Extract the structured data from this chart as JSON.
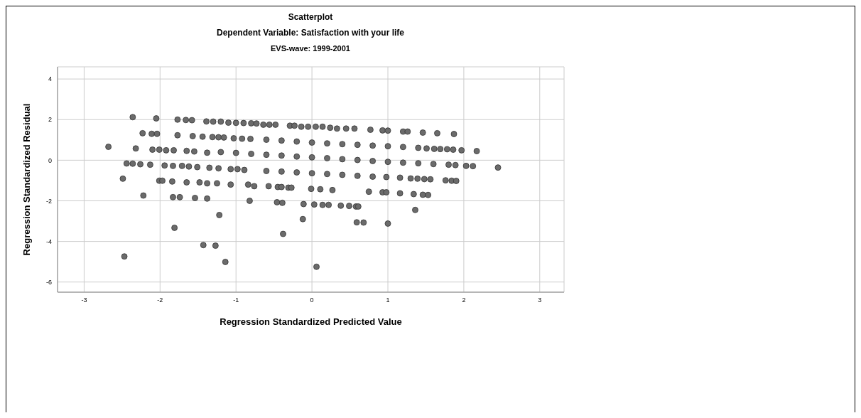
{
  "chart_data": {
    "type": "scatter",
    "title": "Scatterplot",
    "subtitle": "Dependent Variable: Satisfaction with your life",
    "annotations": [
      "EVS-wave: 1999-2001"
    ],
    "xlabel": "Regression Standardized Predicted Value",
    "ylabel": "Regression Standardized Residual",
    "xlim": [
      -3.35,
      3.32
    ],
    "ylim": [
      -6.5,
      4.6
    ],
    "xticks": [
      -3,
      -2,
      -1,
      0,
      1,
      2,
      3
    ],
    "yticks": [
      -6,
      -4,
      -2,
      0,
      2,
      4
    ],
    "grid": true,
    "marker": "circle",
    "series": [
      {
        "color": "#6b6b6b",
        "x": [
          -2.36,
          -2.05,
          -1.77,
          -1.66,
          -1.58,
          -1.39,
          -1.3,
          -1.2,
          -1.1,
          -1.0,
          -0.9,
          -0.8,
          -0.73,
          -0.64,
          -0.56,
          -0.48,
          -0.29,
          -0.23,
          -0.14,
          -0.05,
          0.05,
          0.14,
          0.24,
          0.33,
          0.45,
          0.56,
          0.77,
          0.93,
          1.0,
          1.2,
          1.26,
          1.46,
          1.65,
          1.87,
          -2.23,
          -2.11,
          -2.04,
          -1.77,
          -1.57,
          -1.44,
          -1.31,
          -1.23,
          -1.16,
          -1.03,
          -0.92,
          -0.81,
          -0.6,
          -0.4,
          -0.2,
          0,
          0.2,
          0.4,
          0.6,
          0.8,
          1.0,
          1.2,
          1.4,
          1.51,
          1.61,
          1.69,
          1.78,
          1.86,
          1.97,
          2.17,
          -2.68,
          -2.32,
          -2.1,
          -2.01,
          -1.92,
          -1.82,
          -1.65,
          -1.55,
          -1.38,
          -1.2,
          -1.0,
          -0.8,
          -0.6,
          -0.4,
          -0.2,
          0,
          0.2,
          0.4,
          0.6,
          0.8,
          1.0,
          1.2,
          1.4,
          1.6,
          1.8,
          1.89,
          2.03,
          2.12,
          2.45,
          -2.44,
          -2.36,
          -2.26,
          -2.13,
          -1.94,
          -1.83,
          -1.71,
          -1.62,
          -1.51,
          -1.35,
          -1.23,
          -1.07,
          -0.98,
          -0.89,
          -0.6,
          -0.4,
          -0.2,
          0,
          0.2,
          0.4,
          0.6,
          0.8,
          0.98,
          1.16,
          1.3,
          1.39,
          1.48,
          1.56,
          1.76,
          1.84,
          1.9,
          -2.49,
          -2.01,
          -1.97,
          -1.84,
          -1.65,
          -1.48,
          -1.38,
          -1.25,
          -1.07,
          -0.84,
          -0.76,
          -0.57,
          -0.45,
          -0.4,
          -0.31,
          -0.27,
          -0.01,
          0.11,
          0.27,
          0.75,
          0.93,
          0.98,
          1.16,
          1.34,
          1.46,
          1.53,
          -2.22,
          -1.83,
          -1.74,
          -1.54,
          -1.38,
          -0.82,
          -0.46,
          -0.39,
          -0.11,
          0.03,
          0.14,
          0.22,
          0.38,
          0.49,
          0.58,
          0.61,
          -1.22,
          -0.12,
          0.59,
          0.68,
          1.0,
          1.36,
          -1.81,
          -0.38,
          -1.43,
          -1.27,
          -2.47,
          -1.14,
          0.06
        ],
        "values": [
          2.12,
          2.06,
          2.0,
          1.98,
          1.97,
          1.91,
          1.9,
          1.9,
          1.85,
          1.84,
          1.83,
          1.82,
          1.81,
          1.75,
          1.75,
          1.75,
          1.7,
          1.7,
          1.65,
          1.65,
          1.65,
          1.65,
          1.6,
          1.56,
          1.56,
          1.56,
          1.5,
          1.47,
          1.46,
          1.41,
          1.41,
          1.36,
          1.33,
          1.29,
          1.33,
          1.3,
          1.3,
          1.23,
          1.19,
          1.16,
          1.14,
          1.13,
          1.12,
          1.08,
          1.06,
          1.05,
          1.01,
          0.97,
          0.92,
          0.87,
          0.83,
          0.79,
          0.76,
          0.72,
          0.69,
          0.65,
          0.61,
          0.58,
          0.56,
          0.55,
          0.54,
          0.52,
          0.49,
          0.45,
          0.66,
          0.58,
          0.52,
          0.52,
          0.49,
          0.49,
          0.46,
          0.43,
          0.37,
          0.4,
          0.36,
          0.31,
          0.27,
          0.23,
          0.18,
          0.14,
          0.1,
          0.05,
          0.01,
          -0.04,
          -0.08,
          -0.12,
          -0.15,
          -0.19,
          -0.22,
          -0.24,
          -0.28,
          -0.29,
          -0.36,
          -0.16,
          -0.17,
          -0.2,
          -0.22,
          -0.26,
          -0.28,
          -0.28,
          -0.31,
          -0.34,
          -0.37,
          -0.4,
          -0.44,
          -0.44,
          -0.48,
          -0.53,
          -0.56,
          -0.6,
          -0.64,
          -0.68,
          -0.72,
          -0.77,
          -0.81,
          -0.83,
          -0.86,
          -0.9,
          -0.91,
          -0.93,
          -0.94,
          -0.99,
          -1.01,
          -1.02,
          -0.91,
          -1.01,
          -1.01,
          -1.05,
          -1.09,
          -1.09,
          -1.14,
          -1.14,
          -1.2,
          -1.2,
          -1.28,
          -1.28,
          -1.32,
          -1.32,
          -1.35,
          -1.35,
          -1.41,
          -1.43,
          -1.47,
          -1.55,
          -1.58,
          -1.58,
          -1.63,
          -1.67,
          -1.7,
          -1.71,
          -1.74,
          -1.82,
          -1.82,
          -1.86,
          -1.89,
          -2.0,
          -2.07,
          -2.1,
          -2.16,
          -2.18,
          -2.2,
          -2.2,
          -2.24,
          -2.25,
          -2.28,
          -2.28,
          -2.7,
          -2.9,
          -3.06,
          -3.07,
          -3.12,
          -2.45,
          -3.33,
          -3.63,
          -4.18,
          -4.21,
          -4.74,
          -5.01,
          -5.25
        ]
      }
    ]
  }
}
